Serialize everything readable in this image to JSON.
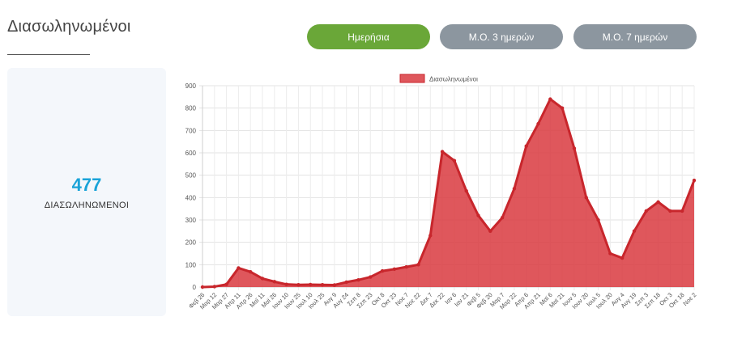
{
  "header": {
    "title": "Διασωληνωμένοι"
  },
  "buttons": {
    "daily": "Ημερήσια",
    "avg3": "Μ.Ο. 3 ημερών",
    "avg7": "Μ.Ο. 7 ημερών"
  },
  "stat": {
    "value": "477",
    "label": "ΔΙΑΣΩΛΗΝΩΜΕΝΟΙ"
  },
  "chart_data": {
    "type": "area",
    "legend": "Διασωληνωμένοι",
    "legend_position": "top-center",
    "grid": true,
    "ylim": [
      0,
      900
    ],
    "yticks": [
      0,
      100,
      200,
      300,
      400,
      500,
      600,
      700,
      800,
      900
    ],
    "xlabels": [
      "Φεβ 26",
      "Μαρ 12",
      "Μαρ 27",
      "Απρ 11",
      "Απρ 26",
      "Μαϊ 11",
      "Μαϊ 26",
      "Ιουν 10",
      "Ιουν 25",
      "Ιουλ 10",
      "Ιουλ 25",
      "Αυγ 9",
      "Αυγ 24",
      "Σεπ 8",
      "Σεπ 23",
      "Οκτ 8",
      "Οκτ 23",
      "Νοε 7",
      "Νοε 22",
      "Δεκ 7",
      "Δεκ 22",
      "Ιαν 6",
      "Ιαν 21",
      "Φεβ 5",
      "Φεβ 20",
      "Μαρ 7",
      "Μαρ 22",
      "Απρ 6",
      "Απρ 21",
      "Μαϊ 6",
      "Μαϊ 21",
      "Ιουν 5",
      "Ιουν 20",
      "Ιουλ 5",
      "Ιουλ 20",
      "Αυγ 4",
      "Αυγ 19",
      "Σεπ 3",
      "Σεπ 18",
      "Οκτ 3",
      "Οκτ 18",
      "Νοε 2"
    ],
    "values": [
      0,
      2,
      12,
      85,
      68,
      38,
      24,
      12,
      10,
      11,
      10,
      9,
      22,
      32,
      45,
      72,
      80,
      90,
      100,
      230,
      605,
      565,
      430,
      320,
      250,
      310,
      440,
      630,
      730,
      840,
      800,
      620,
      400,
      300,
      150,
      130,
      250,
      340,
      380,
      340,
      340,
      477
    ],
    "color": "#d93a3f"
  }
}
